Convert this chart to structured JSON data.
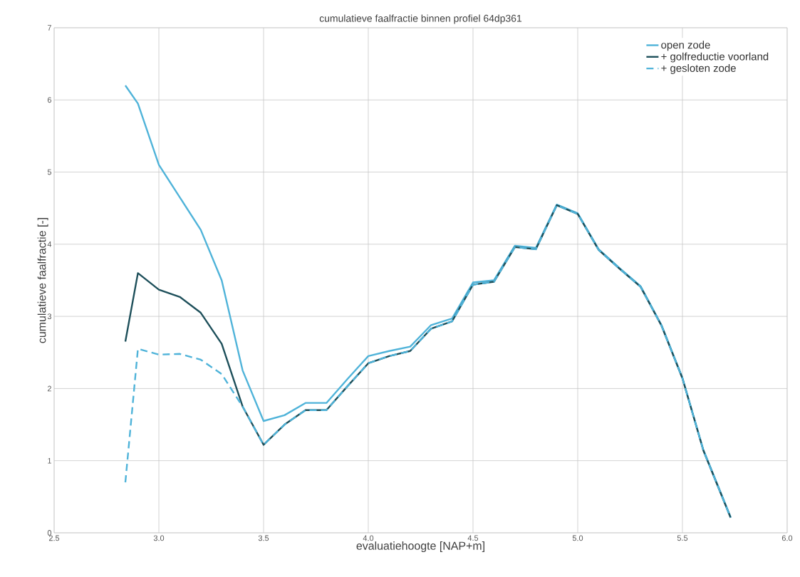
{
  "chart_data": {
    "type": "line",
    "title": "cumulatieve faalfractie binnen profiel 64dp361",
    "xlabel": "evaluatiehoogte [NAP+m]",
    "ylabel": "cumulatieve faalfractie [-]",
    "xlim": [
      2.5,
      6.0
    ],
    "ylim": [
      0,
      7
    ],
    "xticks": [
      {
        "value": 2.5,
        "label": "2.5"
      },
      {
        "value": 3.0,
        "label": "3.0"
      },
      {
        "value": 3.5,
        "label": "3.5"
      },
      {
        "value": 4.0,
        "label": "4.0"
      },
      {
        "value": 4.5,
        "label": "4.5"
      },
      {
        "value": 5.0,
        "label": "5.0"
      },
      {
        "value": 5.5,
        "label": "5.5"
      },
      {
        "value": 6.0,
        "label": "6.0"
      }
    ],
    "yticks": [
      0,
      1,
      2,
      3,
      4,
      5,
      6,
      7
    ],
    "grid": true,
    "legend": "top right",
    "series": [
      {
        "name": "open zode",
        "color": "#4fb3d9",
        "line_style": "solid",
        "x": [
          2.84,
          2.9,
          3.0,
          3.1,
          3.2,
          3.3,
          3.4,
          3.5,
          3.6,
          3.7,
          3.8,
          3.9,
          4.0,
          4.1,
          4.2,
          4.3,
          4.4,
          4.5,
          4.6,
          4.7,
          4.8,
          4.9,
          5.0,
          5.1,
          5.2,
          5.3,
          5.4,
          5.5,
          5.6,
          5.73
        ],
        "values": [
          6.2,
          5.95,
          5.1,
          4.65,
          4.2,
          3.5,
          2.25,
          1.55,
          1.63,
          1.8,
          1.8,
          2.13,
          2.45,
          2.52,
          2.58,
          2.88,
          2.97,
          3.47,
          3.5,
          3.98,
          3.95,
          4.55,
          4.43,
          3.93,
          3.67,
          3.42,
          2.88,
          2.15,
          1.15,
          0.22
        ]
      },
      {
        "name": "+ golfreductie voorland",
        "color": "#1d4f5a",
        "line_style": "solid",
        "x": [
          2.84,
          2.9,
          3.0,
          3.1,
          3.2,
          3.3,
          3.4,
          3.5,
          3.6,
          3.7,
          3.8,
          3.9,
          4.0,
          4.1,
          4.2,
          4.3,
          4.4,
          4.5,
          4.6,
          4.7,
          4.8,
          4.9,
          5.0,
          5.1,
          5.2,
          5.3,
          5.4,
          5.5,
          5.6,
          5.73
        ],
        "values": [
          2.65,
          3.6,
          3.37,
          3.27,
          3.05,
          2.62,
          1.75,
          1.22,
          1.5,
          1.7,
          1.7,
          2.03,
          2.35,
          2.45,
          2.52,
          2.83,
          2.93,
          3.44,
          3.48,
          3.96,
          3.93,
          4.54,
          4.42,
          3.92,
          3.66,
          3.41,
          2.87,
          2.14,
          1.14,
          0.21
        ]
      },
      {
        "name": "+ gesloten zode",
        "color": "#4fb3d9",
        "line_style": "dashed",
        "x": [
          2.84,
          2.9,
          3.0,
          3.1,
          3.2,
          3.3,
          3.4,
          3.5,
          3.6,
          3.7,
          3.8,
          3.9,
          4.0,
          4.1,
          4.2,
          4.3,
          4.4,
          4.5,
          4.6,
          4.7,
          4.8,
          4.9,
          5.0,
          5.1,
          5.2,
          5.3,
          5.4,
          5.5,
          5.6,
          5.73
        ],
        "values": [
          0.7,
          2.55,
          2.47,
          2.48,
          2.4,
          2.2,
          1.75,
          1.22,
          1.5,
          1.7,
          1.7,
          2.03,
          2.35,
          2.45,
          2.52,
          2.83,
          2.93,
          3.44,
          3.48,
          3.96,
          3.93,
          4.54,
          4.42,
          3.92,
          3.66,
          3.41,
          2.87,
          2.14,
          1.14,
          0.21
        ]
      }
    ]
  }
}
